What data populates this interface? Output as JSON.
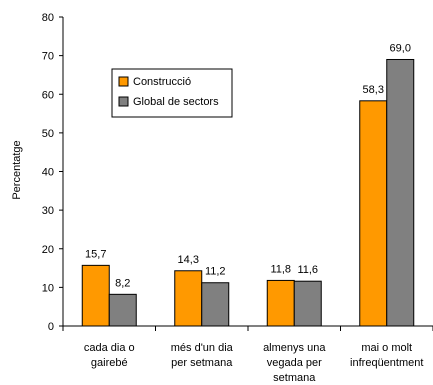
{
  "chart_data": {
    "type": "bar",
    "ylabel": "Percentatge",
    "ylim": [
      0,
      80
    ],
    "yticks": [
      0,
      10,
      20,
      30,
      40,
      50,
      60,
      70,
      80
    ],
    "ytick_labels": [
      "0",
      "10",
      "20",
      "30",
      "40",
      "50",
      "60",
      "70",
      "80"
    ],
    "categories": [
      [
        "cada dia o",
        "gairebé"
      ],
      [
        "més d'un dia",
        "per setmana"
      ],
      [
        "almenys una",
        "vegada per",
        "setmana"
      ],
      [
        "mai o molt",
        "infreqüentment"
      ]
    ],
    "series": [
      {
        "name": "Construcció",
        "color": "#ff9900",
        "values": [
          15.7,
          14.3,
          11.8,
          58.3
        ],
        "labels": [
          "15,7",
          "14,3",
          "11,8",
          "58,3"
        ]
      },
      {
        "name": "Global de sectors",
        "color": "#808080",
        "values": [
          8.2,
          11.2,
          11.6,
          69.0
        ],
        "labels": [
          "8,2",
          "11,2",
          "11,6",
          "69,0"
        ]
      }
    ],
    "legend_position": "top-left",
    "grid": false
  }
}
